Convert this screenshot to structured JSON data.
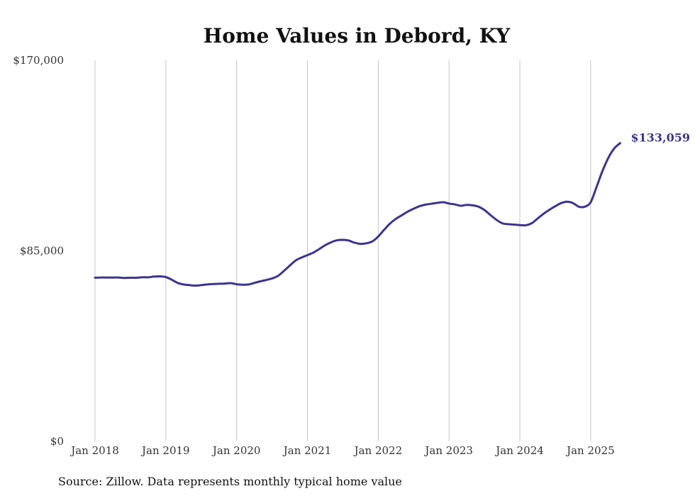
{
  "chart_data": {
    "type": "line",
    "title": "Home Values in Debord, KY",
    "source": "Source: Zillow. Data represents monthly typical home value",
    "xlabel": "",
    "ylabel": "",
    "ylim": [
      0,
      170000
    ],
    "y_ticks": [
      {
        "value": 0,
        "label": "$0"
      },
      {
        "value": 85000,
        "label": "$85,000"
      },
      {
        "value": 170000,
        "label": "$170,000"
      }
    ],
    "x_ticks": [
      {
        "value": "2018-01",
        "label": "Jan 2018"
      },
      {
        "value": "2019-01",
        "label": "Jan 2019"
      },
      {
        "value": "2020-01",
        "label": "Jan 2020"
      },
      {
        "value": "2021-01",
        "label": "Jan 2021"
      },
      {
        "value": "2022-01",
        "label": "Jan 2022"
      },
      {
        "value": "2023-01",
        "label": "Jan 2023"
      },
      {
        "value": "2024-01",
        "label": "Jan 2024"
      },
      {
        "value": "2025-01",
        "label": "Jan 2025"
      }
    ],
    "grid": "vertical",
    "line_color": "#3b3591",
    "end_label": "$133,059",
    "series": [
      {
        "x": [
          "2018-01",
          "2018-02",
          "2018-03",
          "2018-04",
          "2018-05",
          "2018-06",
          "2018-07",
          "2018-08",
          "2018-09",
          "2018-10",
          "2018-11",
          "2018-12",
          "2019-01",
          "2019-02",
          "2019-03",
          "2019-04",
          "2019-05",
          "2019-06",
          "2019-07",
          "2019-08",
          "2019-09",
          "2019-10",
          "2019-11",
          "2019-12",
          "2020-01",
          "2020-02",
          "2020-03",
          "2020-04",
          "2020-05",
          "2020-06",
          "2020-07",
          "2020-08",
          "2020-09",
          "2020-10",
          "2020-11",
          "2020-12",
          "2021-01",
          "2021-02",
          "2021-03",
          "2021-04",
          "2021-05",
          "2021-06",
          "2021-07",
          "2021-08",
          "2021-09",
          "2021-10",
          "2021-11",
          "2021-12",
          "2022-01",
          "2022-02",
          "2022-03",
          "2022-04",
          "2022-05",
          "2022-06",
          "2022-07",
          "2022-08",
          "2022-09",
          "2022-10",
          "2022-11",
          "2022-12",
          "2023-01",
          "2023-02",
          "2023-03",
          "2023-04",
          "2023-05",
          "2023-06",
          "2023-07",
          "2023-08",
          "2023-09",
          "2023-10",
          "2023-11",
          "2023-12",
          "2024-01",
          "2024-02",
          "2024-03",
          "2024-04",
          "2024-05",
          "2024-06",
          "2024-07",
          "2024-08",
          "2024-09",
          "2024-10",
          "2024-11",
          "2024-12",
          "2025-01",
          "2025-02",
          "2025-03",
          "2025-04",
          "2025-05",
          "2025-06"
        ],
        "y": [
          73000,
          73100,
          73100,
          73100,
          73100,
          72900,
          73000,
          73000,
          73200,
          73200,
          73500,
          73600,
          73300,
          72100,
          70700,
          70000,
          69700,
          69500,
          69700,
          70000,
          70200,
          70300,
          70400,
          70600,
          70100,
          69900,
          70000,
          70700,
          71400,
          72000,
          72700,
          73800,
          76000,
          78400,
          80700,
          82000,
          83100,
          84200,
          85800,
          87500,
          88800,
          89700,
          89900,
          89600,
          88600,
          88100,
          88400,
          89200,
          91400,
          94400,
          97200,
          99300,
          100900,
          102500,
          103800,
          104900,
          105600,
          106000,
          106400,
          106700,
          106100,
          105700,
          105100,
          105500,
          105300,
          104700,
          103200,
          101000,
          98900,
          97300,
          96900,
          96700,
          96500,
          96400,
          97300,
          99400,
          101500,
          103300,
          104900,
          106300,
          106900,
          106300,
          104700,
          104700,
          106700,
          113500,
          120600,
          126500,
          130700,
          133059
        ]
      }
    ]
  }
}
